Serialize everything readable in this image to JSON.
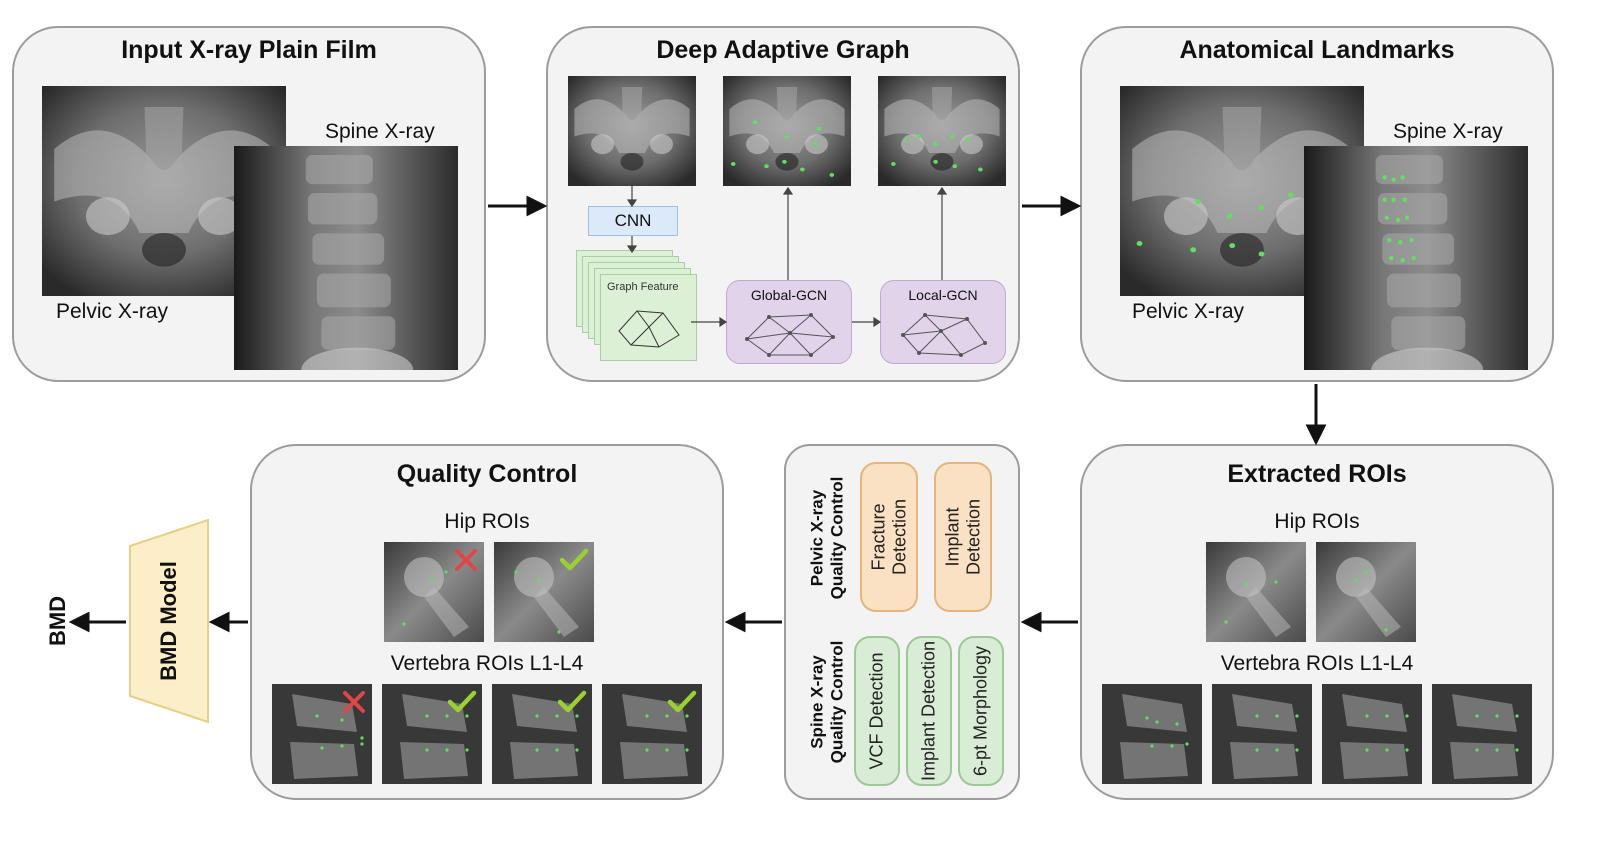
{
  "panels": {
    "input": {
      "title": "Input X-ray Plain Film",
      "spine_label": "Spine X-ray",
      "pelvic_label": "Pelvic X-ray"
    },
    "dag": {
      "title": "Deep Adaptive Graph",
      "cnn_label": "CNN",
      "graph_feature_label": "Graph Feature",
      "global_gcn_label": "Global-GCN",
      "local_gcn_label": "Local-GCN"
    },
    "landmarks": {
      "title": "Anatomical Landmarks",
      "spine_label": "Spine X-ray",
      "pelvic_label": "Pelvic X-ray"
    },
    "rois": {
      "title": "Extracted ROIs",
      "hip_label": "Hip ROIs",
      "vertebra_label": "Vertebra ROIs L1-L4"
    },
    "qc_methods": {
      "pelvic_heading": [
        "Pelvic X-ray",
        "Quality Control"
      ],
      "spine_heading": [
        "Spine X-ray",
        "Quality Control"
      ],
      "pelvic_items": [
        [
          "Fracture",
          "Detection"
        ],
        [
          "Implant",
          "Detection"
        ]
      ],
      "spine_items": [
        "VCF Detection",
        "Implant Detection",
        "6-pt Morphology"
      ]
    },
    "qc": {
      "title": "Quality Control",
      "hip_label": "Hip ROIs",
      "vertebra_label": "Vertebra ROIs L1-L4"
    }
  },
  "model_label": "BMD Model",
  "output_label": "BMD",
  "colors": {
    "panel_bg": "#f3f3f3",
    "panel_border": "#9c9c9c",
    "cnn": "#dce9f8",
    "graph_feature": "#dcf0d6",
    "gcn": "#e0d3ea",
    "model": "#fbeec8",
    "landmark": "#5fe05f",
    "reject": "#e04646",
    "accept": "#9ad12e"
  },
  "qc_marks": {
    "hip": [
      "reject",
      "accept"
    ],
    "vertebra": [
      "reject",
      "accept",
      "accept",
      "accept"
    ]
  }
}
